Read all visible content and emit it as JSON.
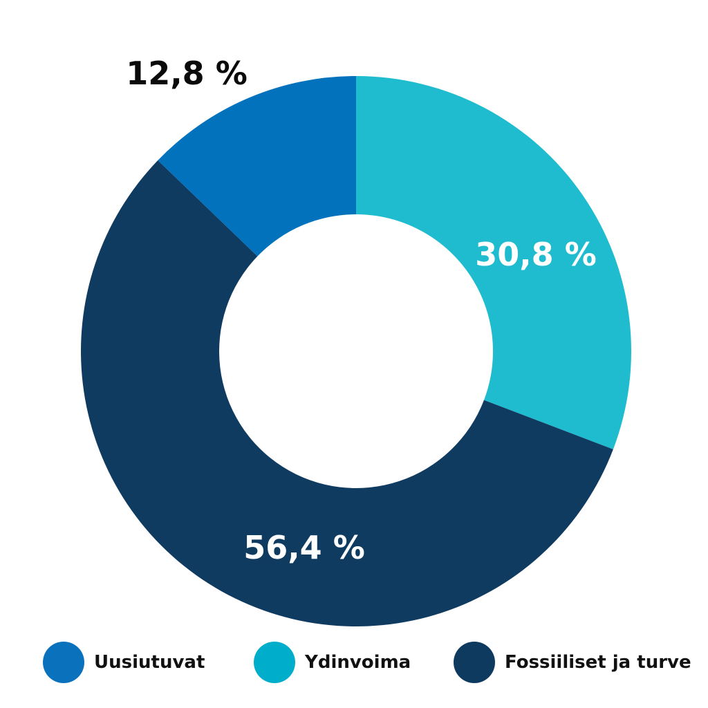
{
  "chart_data": {
    "type": "pie",
    "donut": true,
    "start": "12 o'clock, clockwise",
    "slices": [
      {
        "name": "Ydinvoima",
        "value": 30.8,
        "label": "30,8 %",
        "color": "#1fbccf",
        "label_color": "#ffffff"
      },
      {
        "name": "Fossiiliset ja turve",
        "value": 56.4,
        "label": "56,4 %",
        "color": "#103b61",
        "label_color": "#ffffff"
      },
      {
        "name": "Uusiutuvat",
        "value": 12.8,
        "label": "12,8 %",
        "color": "#0272bd",
        "label_color": "#0a0a0a"
      }
    ],
    "legend": {
      "placement": "bottom",
      "entries": [
        {
          "label": "Uusiutuvat",
          "color": "#0a72bd"
        },
        {
          "label": "Ydinvoima",
          "color": "#00aecb"
        },
        {
          "label": "Fossiiliset ja turve",
          "color": "#0f3a5f"
        }
      ]
    }
  }
}
